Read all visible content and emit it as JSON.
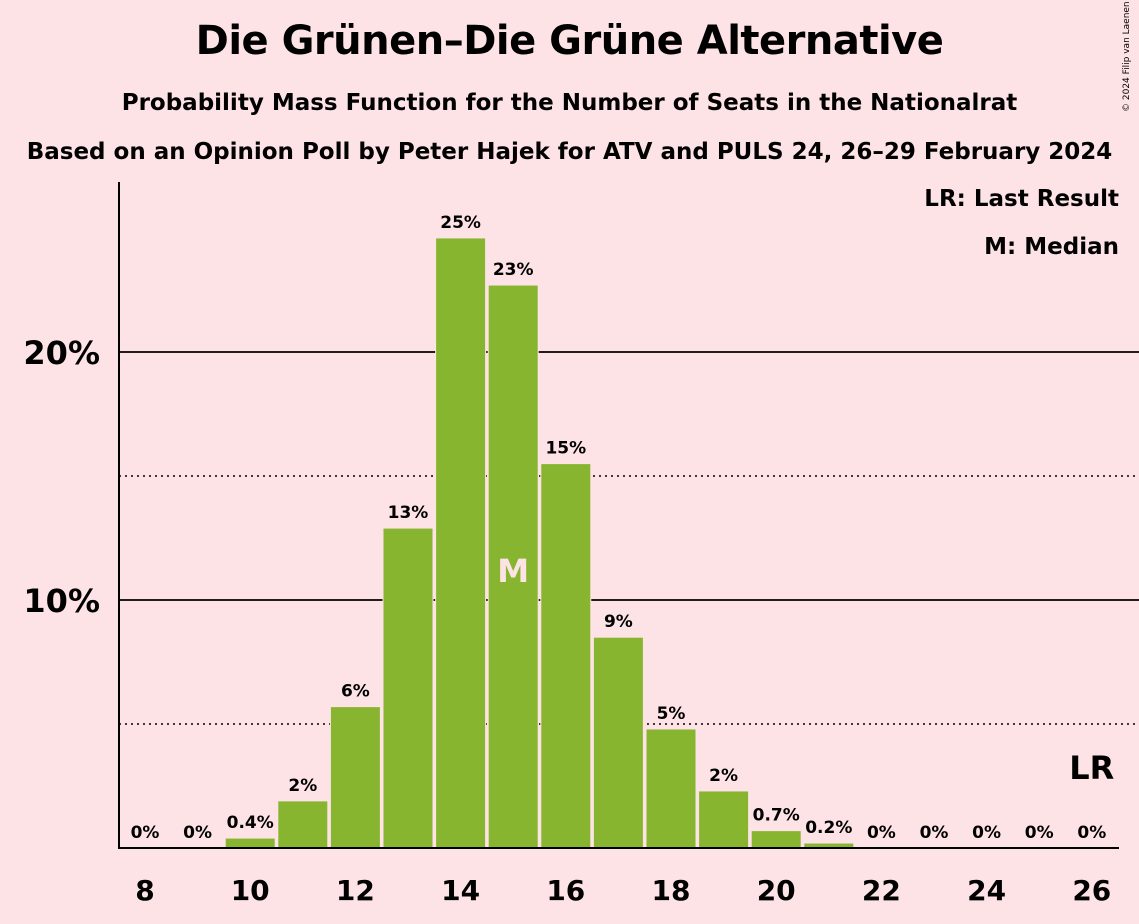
{
  "chart_data": {
    "type": "bar",
    "title": "Die Grünen–Die Grüne Alternative",
    "subtitle": "Probability Mass Function for the Number of Seats in the Nationalrat",
    "subtitle2": "Based on an Opinion Poll by Peter Hajek for ATV and PULS 24, 26–29 February 2024",
    "copyright": "© 2024 Filip van Laenen",
    "legend": {
      "last_result": "LR: Last Result",
      "median": "M: Median",
      "placement": "top-right"
    },
    "categories": [
      8,
      9,
      10,
      11,
      12,
      13,
      14,
      15,
      16,
      17,
      18,
      19,
      20,
      21,
      22,
      23,
      24,
      25,
      26
    ],
    "values": [
      0,
      0,
      0.4,
      1.9,
      5.7,
      12.9,
      24.6,
      22.7,
      15.5,
      8.5,
      4.8,
      2.3,
      0.7,
      0.2,
      0,
      0,
      0,
      0,
      0
    ],
    "value_labels": [
      "0%",
      "0%",
      "0.4%",
      "2%",
      "6%",
      "13%",
      "25%",
      "23%",
      "15%",
      "9%",
      "5%",
      "2%",
      "0.7%",
      "0.2%",
      "0%",
      "0%",
      "0%",
      "0%",
      "0%"
    ],
    "x_tick_labels": [
      "8",
      "10",
      "12",
      "14",
      "16",
      "18",
      "20",
      "22",
      "24",
      "26"
    ],
    "y_tick_labels": [
      "10%",
      "20%"
    ],
    "ylim": [
      0,
      27
    ],
    "solid_gridlines": [
      10,
      20
    ],
    "dotted_gridlines": [
      5,
      15
    ],
    "median_seat": 15,
    "median_marker": "M",
    "last_result_seat": 26,
    "last_result_marker": "LR",
    "bar_color": "#88b52f",
    "background_color": "#fde3e6"
  }
}
